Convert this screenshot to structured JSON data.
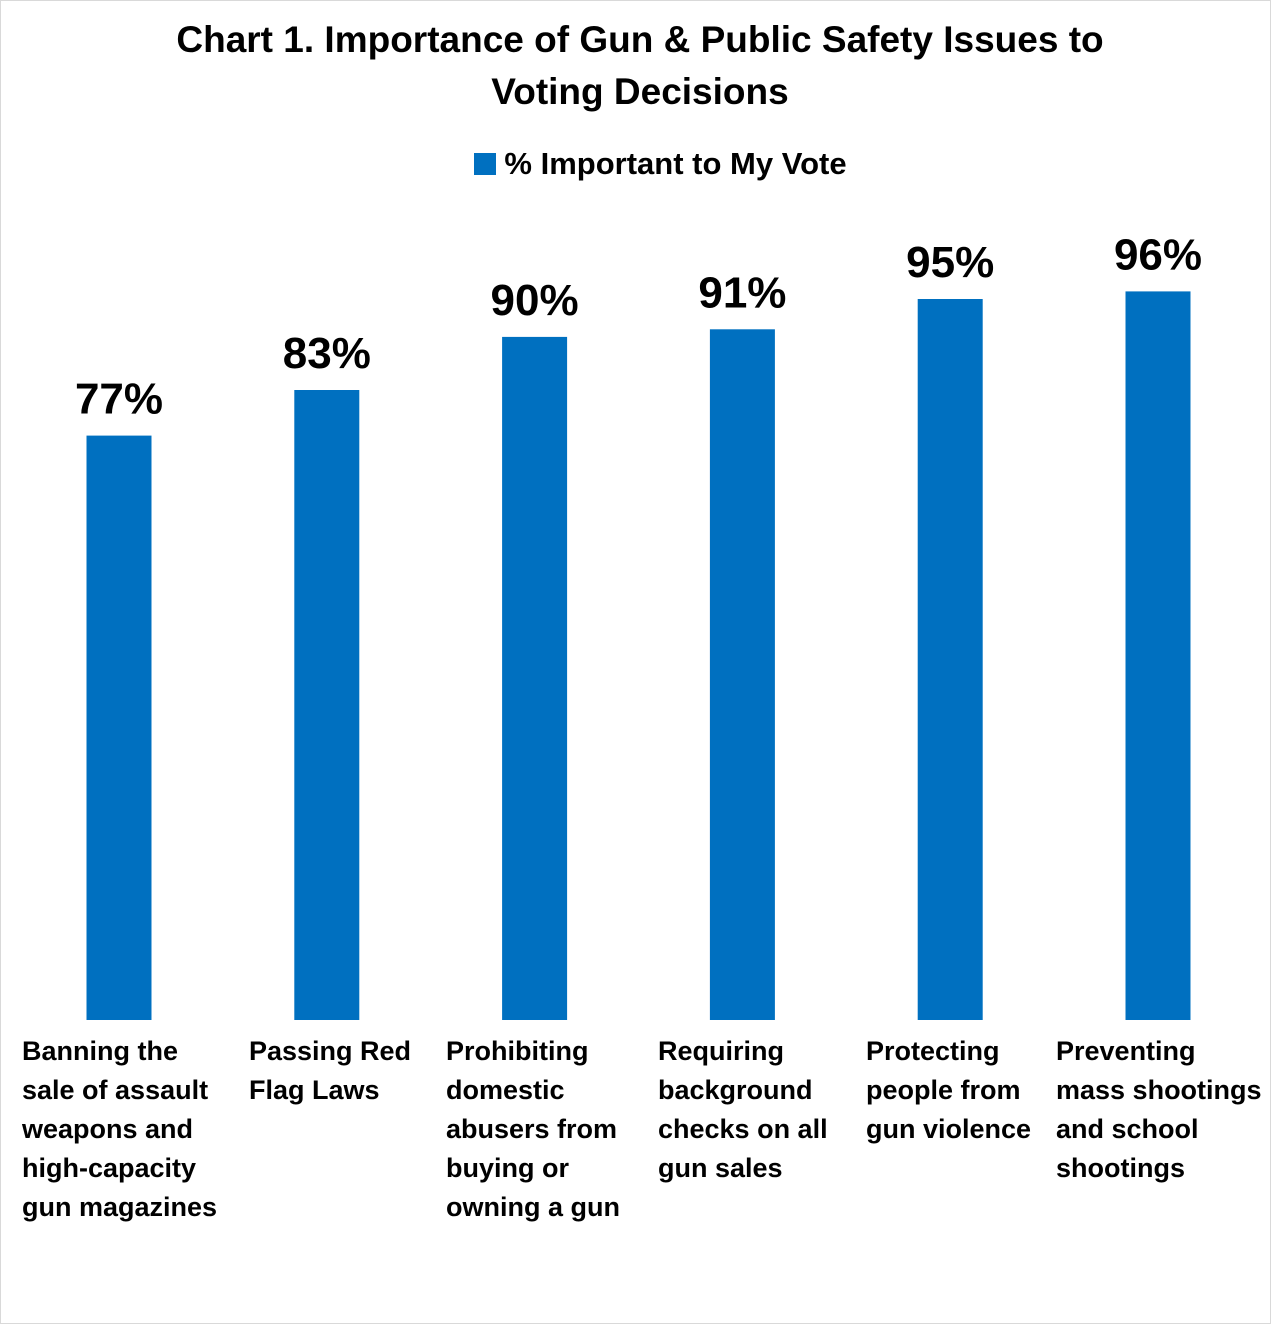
{
  "chart_data": {
    "type": "bar",
    "title": "Chart 1. Importance of Gun & Public Safety Issues to Voting Decisions",
    "title_lines": [
      "Chart 1. Importance of Gun & Public Safety Issues to",
      "Voting Decisions"
    ],
    "legend": {
      "placement": "top-center"
    },
    "grid": false,
    "ylim": [
      0,
      100
    ],
    "categories": [
      "Banning the sale of assault weapons and high-capacity gun magazines",
      "Passing Red Flag Laws",
      "Prohibiting domestic abusers from buying or owning a gun",
      "Requiring background checks on all gun sales",
      "Protecting people from gun violence",
      "Preventing mass shootings and school shootings"
    ],
    "category_lines": [
      "Banning the\nsale of assault\nweapons and\nhigh-capacity\ngun magazines",
      "Passing Red\nFlag Laws",
      "Prohibiting\ndomestic\nabusers from\nbuying or\nowning a gun",
      "Requiring\nbackground\nchecks on all\ngun sales",
      "Protecting\npeople from\ngun violence",
      "Preventing\nmass shootings\nand school\nshootings"
    ],
    "series": [
      {
        "name": "% Important to My Vote",
        "color": "#0070C0",
        "values": [
          77,
          83,
          90,
          91,
          95,
          96
        ],
        "labels": [
          "77%",
          "83%",
          "90%",
          "91%",
          "95%",
          "96%"
        ]
      }
    ]
  }
}
